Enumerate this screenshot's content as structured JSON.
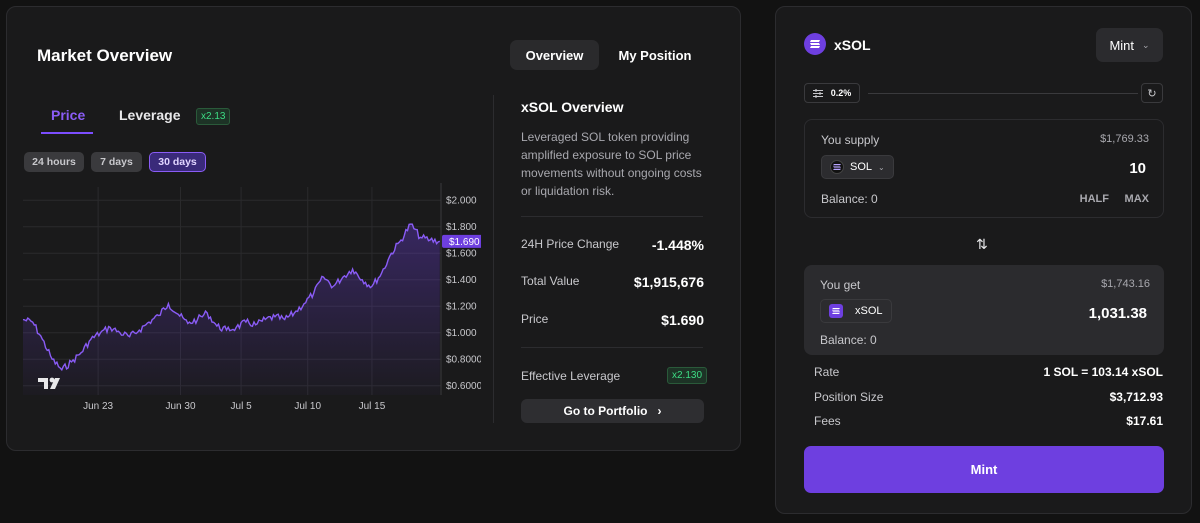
{
  "market": {
    "title": "Market Overview",
    "view_tabs": [
      {
        "label": "Overview",
        "active": true
      },
      {
        "label": "My Position",
        "active": false
      }
    ],
    "chart_tabs": [
      {
        "label": "Price",
        "active": true
      },
      {
        "label": "Leverage",
        "active": false
      }
    ],
    "leverage_badge": "x2.13",
    "ranges": [
      {
        "label": "24 hours",
        "active": false
      },
      {
        "label": "7 days",
        "active": false
      },
      {
        "label": "30 days",
        "active": true
      }
    ],
    "overview": {
      "title": "xSOL Overview",
      "description": "Leveraged SOL token providing amplified exposure to SOL price movements without ongoing costs or liquidation risk.",
      "rows": [
        {
          "label": "24H Price Change",
          "value": "-1.448%"
        },
        {
          "label": "Total Value",
          "value": "$1,915,676"
        },
        {
          "label": "Price",
          "value": "$1.690"
        }
      ],
      "effective_leverage_label": "Effective Leverage",
      "effective_leverage_value": "x2.130",
      "portfolio_button": "Go to Portfolio"
    }
  },
  "chart_data": {
    "type": "area",
    "y_tick_labels": [
      "$2.000",
      "$1.800",
      "$1.600",
      "$1.400",
      "$1.200",
      "$1.000",
      "$0.8000",
      "$0.6000"
    ],
    "y_ticks": [
      2.0,
      1.8,
      1.6,
      1.4,
      1.2,
      1.0,
      0.8,
      0.6
    ],
    "x_tick_labels": [
      "Jun 23",
      "Jun 30",
      "Jul 5",
      "Jul 10",
      "Jul 15"
    ],
    "x_tick_days": [
      6.2,
      13.0,
      18.0,
      23.5,
      28.8
    ],
    "ylim": [
      0.53,
      2.1
    ],
    "xlim": [
      0,
      34.5
    ],
    "last_price_label": "$1.690",
    "last_price": 1.69,
    "x_days": [
      0,
      0.8,
      1.6,
      2.4,
      3.2,
      4.0,
      4.8,
      5.6,
      6.4,
      7.2,
      8.0,
      8.8,
      9.6,
      10.4,
      11.2,
      12.0,
      12.8,
      13.6,
      14.4,
      15.2,
      16.0,
      16.8,
      17.6,
      18.4,
      19.2,
      20.0,
      20.8,
      21.6,
      22.4,
      23.2,
      24.0,
      24.8,
      25.6,
      26.4,
      27.2,
      28.0,
      28.8,
      29.6,
      30.4,
      31.2,
      32.0,
      32.8,
      33.6,
      34.4
    ],
    "values": [
      1.1,
      1.08,
      0.95,
      0.8,
      0.72,
      0.78,
      0.85,
      0.95,
      1.0,
      1.04,
      1.0,
      0.97,
      1.02,
      1.08,
      1.13,
      1.22,
      1.14,
      1.07,
      1.1,
      1.15,
      1.05,
      1.02,
      1.04,
      1.08,
      1.06,
      1.1,
      1.12,
      1.1,
      1.15,
      1.22,
      1.3,
      1.42,
      1.35,
      1.42,
      1.48,
      1.4,
      1.35,
      1.45,
      1.6,
      1.7,
      1.82,
      1.72,
      1.7,
      1.69
    ]
  },
  "swap": {
    "token_name": "xSOL",
    "mode_dropdown": "Mint",
    "slippage": "0.2%",
    "supply": {
      "label": "You supply",
      "usd": "$1,769.33",
      "token": "SOL",
      "amount": "10",
      "balance": "Balance: 0",
      "half": "HALF",
      "max": "MAX"
    },
    "get": {
      "label": "You get",
      "usd": "$1,743.16",
      "token": "xSOL",
      "amount": "1,031.38",
      "balance": "Balance: 0"
    },
    "details": [
      {
        "label": "Rate",
        "value": "1 SOL = 103.14 xSOL"
      },
      {
        "label": "Position Size",
        "value": "$3,712.93"
      },
      {
        "label": "Fees",
        "value": "$17.61"
      }
    ],
    "mint_button": "Mint"
  },
  "colors": {
    "accent": "#6e3fe0",
    "positive": "#3ddc84",
    "line": "#8a5cf6"
  }
}
